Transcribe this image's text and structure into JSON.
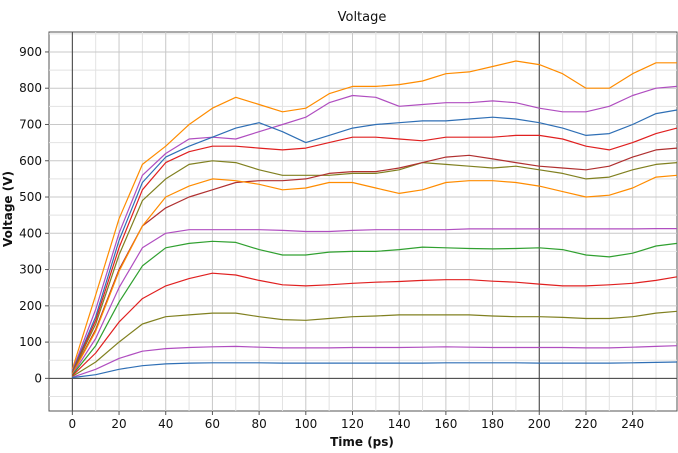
{
  "chart_data": {
    "type": "line",
    "title": "Voltage",
    "xlabel": "Time (ps)",
    "ylabel": "Voltage (V)",
    "xlim": [
      -10,
      259
    ],
    "ylim": [
      -90,
      955
    ],
    "xticks": [
      0,
      20,
      40,
      60,
      80,
      100,
      120,
      140,
      160,
      180,
      200,
      220,
      240
    ],
    "yticks": [
      0,
      100,
      200,
      300,
      400,
      500,
      600,
      700,
      800,
      900
    ],
    "grid": true,
    "legend": "none",
    "crosshair": {
      "x": 200
    },
    "x": [
      0,
      10,
      20,
      30,
      40,
      50,
      60,
      70,
      80,
      90,
      100,
      110,
      120,
      130,
      140,
      150,
      160,
      170,
      180,
      190,
      200,
      210,
      220,
      230,
      240,
      250,
      259
    ],
    "series": [
      {
        "color": "#ff8c00",
        "values": [
          25,
          230,
          440,
          590,
          640,
          700,
          745,
          775,
          755,
          735,
          745,
          785,
          805,
          805,
          810,
          820,
          840,
          845,
          860,
          875,
          865,
          840,
          800,
          800,
          840,
          870,
          870
        ]
      },
      {
        "color": "#b04ec0",
        "values": [
          20,
          190,
          400,
          560,
          620,
          660,
          665,
          660,
          680,
          700,
          720,
          760,
          780,
          775,
          750,
          755,
          760,
          760,
          765,
          760,
          745,
          735,
          735,
          750,
          780,
          800,
          805
        ]
      },
      {
        "color": "#2f6fb5",
        "values": [
          18,
          170,
          380,
          540,
          610,
          640,
          665,
          690,
          705,
          680,
          650,
          670,
          690,
          700,
          705,
          710,
          710,
          715,
          720,
          715,
          705,
          690,
          670,
          675,
          700,
          730,
          740
        ]
      },
      {
        "color": "#e02020",
        "values": [
          16,
          160,
          360,
          520,
          595,
          625,
          640,
          640,
          635,
          630,
          635,
          650,
          665,
          665,
          660,
          655,
          665,
          665,
          665,
          670,
          670,
          660,
          640,
          630,
          650,
          675,
          690
        ]
      },
      {
        "color": "#808020",
        "values": [
          15,
          150,
          340,
          490,
          550,
          590,
          600,
          595,
          575,
          560,
          560,
          560,
          565,
          565,
          575,
          595,
          590,
          585,
          580,
          585,
          575,
          565,
          550,
          555,
          575,
          590,
          595
        ]
      },
      {
        "color": "#b03030",
        "values": [
          13,
          135,
          300,
          420,
          470,
          500,
          520,
          540,
          545,
          545,
          550,
          565,
          570,
          570,
          580,
          595,
          610,
          615,
          605,
          595,
          585,
          580,
          575,
          585,
          610,
          630,
          635
        ]
      },
      {
        "color": "#ff8c00",
        "values": [
          12,
          130,
          295,
          420,
          500,
          530,
          550,
          545,
          535,
          520,
          525,
          540,
          540,
          525,
          510,
          520,
          540,
          545,
          545,
          540,
          530,
          515,
          500,
          505,
          525,
          555,
          560
        ]
      },
      {
        "color": "#b04ec0",
        "values": [
          10,
          110,
          250,
          360,
          400,
          410,
          410,
          410,
          410,
          408,
          405,
          405,
          408,
          410,
          410,
          410,
          410,
          412,
          412,
          412,
          412,
          412,
          412,
          412,
          412,
          413,
          413
        ]
      },
      {
        "color": "#30a030",
        "values": [
          9,
          90,
          210,
          310,
          360,
          372,
          378,
          375,
          355,
          340,
          340,
          348,
          350,
          350,
          355,
          362,
          360,
          358,
          357,
          358,
          360,
          355,
          340,
          335,
          345,
          365,
          372
        ]
      },
      {
        "color": "#e02020",
        "values": [
          7,
          70,
          155,
          220,
          255,
          275,
          290,
          285,
          270,
          258,
          255,
          258,
          262,
          265,
          267,
          270,
          272,
          272,
          268,
          265,
          260,
          255,
          255,
          258,
          262,
          270,
          280
        ]
      },
      {
        "color": "#808020",
        "values": [
          5,
          45,
          100,
          150,
          170,
          175,
          180,
          180,
          170,
          162,
          160,
          165,
          170,
          172,
          175,
          175,
          175,
          175,
          172,
          170,
          170,
          168,
          165,
          165,
          170,
          180,
          185
        ]
      },
      {
        "color": "#b04ec0",
        "values": [
          3,
          25,
          55,
          75,
          82,
          85,
          87,
          88,
          86,
          84,
          84,
          84,
          85,
          85,
          85,
          86,
          87,
          86,
          85,
          85,
          85,
          85,
          84,
          84,
          86,
          88,
          90
        ]
      },
      {
        "color": "#2f6fb5",
        "values": [
          2,
          10,
          25,
          35,
          40,
          42,
          43,
          43,
          43,
          42,
          42,
          42,
          42,
          42,
          42,
          42,
          43,
          43,
          43,
          43,
          42,
          42,
          42,
          42,
          43,
          44,
          45
        ]
      }
    ]
  }
}
